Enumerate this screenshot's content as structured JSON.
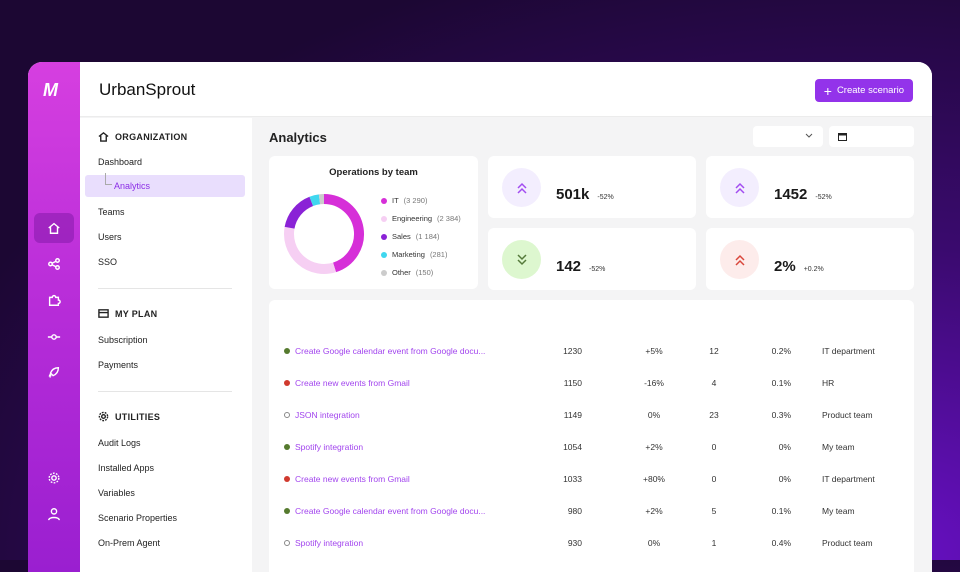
{
  "app": {
    "title": "UrbanSprout",
    "logo": "M",
    "create_label": "Create scenario"
  },
  "rail": [
    "home-icon",
    "share-icon",
    "puzzle-icon",
    "commit-icon",
    "rocket-icon",
    "gear-icon",
    "user-icon"
  ],
  "sidebar": {
    "org": {
      "title": "ORGANIZATION",
      "items": [
        "Dashboard",
        "Analytics",
        "Teams",
        "Users",
        "SSO"
      ]
    },
    "plan": {
      "title": "MY PLAN",
      "items": [
        "Subscription",
        "Payments"
      ]
    },
    "util": {
      "title": "UTILITIES",
      "items": [
        "Audit Logs",
        "Installed Apps",
        "Variables",
        "Scenario Properties",
        "On-Prem Agent"
      ]
    }
  },
  "main": {
    "title": "Analytics"
  },
  "chart_data": {
    "type": "pie",
    "title": "Operations by team",
    "donut": true,
    "slices": [
      {
        "label": "IT",
        "value": 3290,
        "display": "(3 290)",
        "color": "#d62fd8"
      },
      {
        "label": "Engineering",
        "value": 2384,
        "display": "(2 384)",
        "color": "#f6cff3"
      },
      {
        "label": "Sales",
        "value": 1184,
        "display": "(1 184)",
        "color": "#8a22d6"
      },
      {
        "label": "Marketing",
        "value": 281,
        "display": "(281)",
        "color": "#3fd7ef"
      },
      {
        "label": "Other",
        "value": 150,
        "display": "(150)",
        "color": "#cccccc"
      }
    ]
  },
  "kpis": [
    {
      "value": "501k",
      "change": "-52%",
      "icon": "chevrons-up-icon",
      "bg": "#f3eefe",
      "fg": "#a24cf0"
    },
    {
      "value": "1452",
      "change": "-52%",
      "icon": "chevrons-up-icon",
      "bg": "#f3eefe",
      "fg": "#a24cf0"
    },
    {
      "value": "142",
      "change": "-52%",
      "icon": "chevrons-down-icon",
      "bg": "#ddf7cf",
      "fg": "#557a3a"
    },
    {
      "value": "2%",
      "change": "+0.2%",
      "icon": "chevrons-up-icon",
      "bg": "#fdeceb",
      "fg": "#d9473b"
    }
  ],
  "table": [
    {
      "status": "green",
      "name": "Create Google calendar event from Google docu...",
      "ops": "1230",
      "change": "+5%",
      "n": "12",
      "pct": "0.2%",
      "team": "IT department"
    },
    {
      "status": "red",
      "name": "Create new events from Gmail",
      "ops": "1150",
      "change": "-16%",
      "n": "4",
      "pct": "0.1%",
      "team": "HR"
    },
    {
      "status": "off",
      "name": "JSON integration",
      "ops": "1149",
      "change": "0%",
      "n": "23",
      "pct": "0.3%",
      "team": "Product team"
    },
    {
      "status": "green",
      "name": "Spotify integration",
      "ops": "1054",
      "change": "+2%",
      "n": "0",
      "pct": "0%",
      "team": "My team"
    },
    {
      "status": "red",
      "name": "Create new events from Gmail",
      "ops": "1033",
      "change": "+80%",
      "n": "0",
      "pct": "0%",
      "team": "IT department"
    },
    {
      "status": "green",
      "name": "Create Google calendar event from Google docu...",
      "ops": "980",
      "change": "+2%",
      "n": "5",
      "pct": "0.1%",
      "team": "My team"
    },
    {
      "status": "off",
      "name": "Spotify integration",
      "ops": "930",
      "change": "0%",
      "n": "1",
      "pct": "0.4%",
      "team": "Product team"
    }
  ],
  "colors": {
    "accent": "#9333ea",
    "green": "#557a2e",
    "red": "#d03a2e"
  }
}
